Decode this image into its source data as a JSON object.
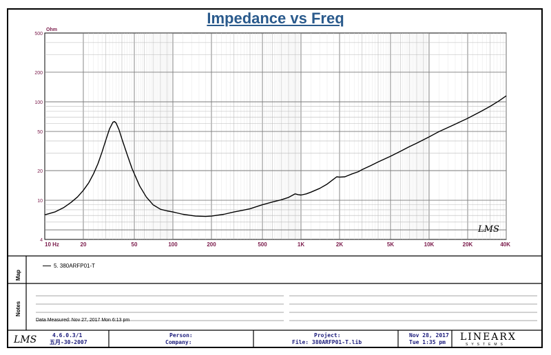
{
  "header": {
    "title": "Impedance vs Freq"
  },
  "chart_data": {
    "type": "line",
    "title": "Impedance vs Freq",
    "xlabel": "",
    "ylabel": "Ohm",
    "x_scale": "log",
    "y_scale": "log",
    "xlim": [
      10,
      40000
    ],
    "ylim": [
      4,
      500
    ],
    "x_ticks": [
      {
        "value": 10,
        "label": "10 Hz"
      },
      {
        "value": 20,
        "label": "20"
      },
      {
        "value": 50,
        "label": "50"
      },
      {
        "value": 100,
        "label": "100"
      },
      {
        "value": 200,
        "label": "200"
      },
      {
        "value": 500,
        "label": "500"
      },
      {
        "value": 1000,
        "label": "1K"
      },
      {
        "value": 2000,
        "label": "2K"
      },
      {
        "value": 5000,
        "label": "5K"
      },
      {
        "value": 10000,
        "label": "10K"
      },
      {
        "value": 20000,
        "label": "20K"
      },
      {
        "value": 40000,
        "label": "40K"
      }
    ],
    "y_ticks": [
      {
        "value": 500,
        "label": "500"
      },
      {
        "value": 200,
        "label": "200"
      },
      {
        "value": 100,
        "label": "100"
      },
      {
        "value": 50,
        "label": "50"
      },
      {
        "value": 20,
        "label": "20"
      },
      {
        "value": 10,
        "label": "10"
      },
      {
        "value": 4,
        "label": "4"
      }
    ],
    "grid": true,
    "series": [
      {
        "name": "5. 380ARFP01-T",
        "color": "#000000",
        "points": [
          [
            10,
            7.1
          ],
          [
            12,
            7.6
          ],
          [
            14,
            8.4
          ],
          [
            16,
            9.5
          ],
          [
            18,
            10.8
          ],
          [
            20,
            12.6
          ],
          [
            22,
            15
          ],
          [
            24,
            18.5
          ],
          [
            26,
            23.5
          ],
          [
            28,
            31
          ],
          [
            30,
            41
          ],
          [
            32,
            53
          ],
          [
            34,
            62
          ],
          [
            35,
            63
          ],
          [
            36,
            61
          ],
          [
            38,
            52
          ],
          [
            40,
            42
          ],
          [
            44,
            29
          ],
          [
            48,
            21
          ],
          [
            55,
            14
          ],
          [
            62,
            10.8
          ],
          [
            70,
            9
          ],
          [
            80,
            8.1
          ],
          [
            90,
            7.8
          ],
          [
            100,
            7.6
          ],
          [
            120,
            7.2
          ],
          [
            150,
            6.9
          ],
          [
            180,
            6.85
          ],
          [
            200,
            6.9
          ],
          [
            250,
            7.2
          ],
          [
            300,
            7.6
          ],
          [
            350,
            7.9
          ],
          [
            400,
            8.2
          ],
          [
            500,
            9
          ],
          [
            600,
            9.6
          ],
          [
            700,
            10.1
          ],
          [
            800,
            10.7
          ],
          [
            900,
            11.6
          ],
          [
            950,
            11.4
          ],
          [
            1000,
            11.3
          ],
          [
            1100,
            11.6
          ],
          [
            1200,
            12.1
          ],
          [
            1400,
            13.2
          ],
          [
            1600,
            14.6
          ],
          [
            1800,
            16.4
          ],
          [
            1900,
            17.3
          ],
          [
            2000,
            17.2
          ],
          [
            2200,
            17.3
          ],
          [
            2500,
            18.5
          ],
          [
            2800,
            19.5
          ],
          [
            3000,
            20.5
          ],
          [
            3500,
            22.5
          ],
          [
            4000,
            24.5
          ],
          [
            5000,
            28
          ],
          [
            6000,
            31.5
          ],
          [
            7000,
            35
          ],
          [
            8000,
            38
          ],
          [
            10000,
            44
          ],
          [
            12000,
            50
          ],
          [
            15000,
            57
          ],
          [
            20000,
            68
          ],
          [
            25000,
            79
          ],
          [
            30000,
            90
          ],
          [
            35000,
            102
          ],
          [
            40000,
            115
          ]
        ]
      }
    ],
    "annotations": [
      "LMS"
    ]
  },
  "map": {
    "label": "Map",
    "entry": "5. 380ARFP01-T"
  },
  "notes": {
    "label": "Notes",
    "date_measured": "Data Measured: Nov 27, 2017  Mon  6:13 pm"
  },
  "footer": {
    "logo": "LMS",
    "version": "4.6.0.3/1",
    "version_date": "五月-30-2007",
    "person_label": "Person:",
    "company_label": "Company:",
    "project_label": "Project:",
    "file_label": "File: 380ARFP01-T.lib",
    "date": "Nov 28, 2017",
    "time": "Tue  1:35 pm",
    "brand": "LINEARX",
    "brand_sub": "SYSTEMS"
  }
}
